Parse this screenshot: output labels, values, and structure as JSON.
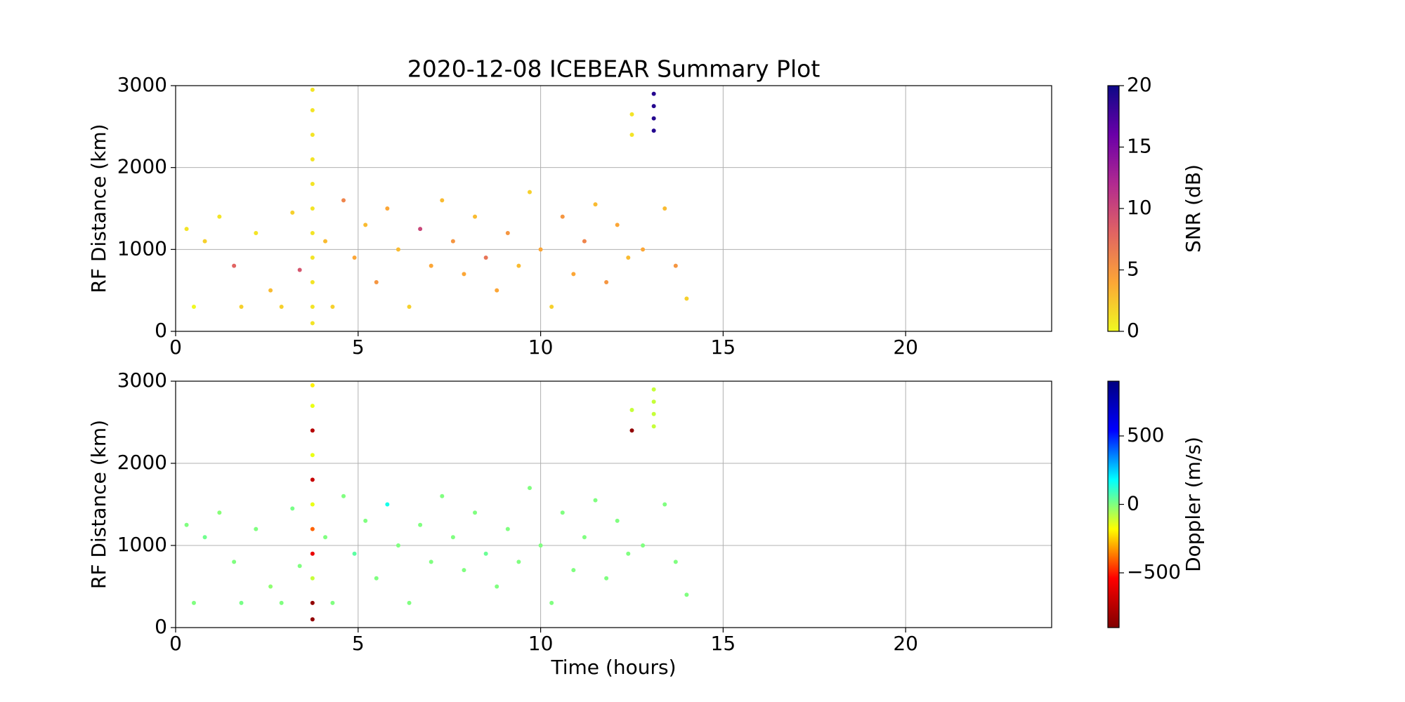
{
  "chart_data": [
    {
      "type": "scatter",
      "title": "2020-12-08 ICEBEAR Summary Plot",
      "ylabel": "RF Distance (km)",
      "x": [
        0.3,
        0.5,
        0.8,
        1.2,
        1.6,
        1.8,
        2.2,
        2.6,
        2.9,
        3.2,
        3.4,
        3.75,
        3.75,
        3.75,
        3.75,
        3.75,
        3.75,
        3.75,
        3.75,
        3.75,
        3.75,
        3.75,
        4.1,
        4.3,
        4.6,
        4.9,
        5.2,
        5.5,
        5.8,
        6.1,
        6.4,
        6.7,
        7.0,
        7.3,
        7.6,
        7.9,
        8.2,
        8.5,
        8.8,
        9.1,
        9.4,
        9.7,
        10.0,
        10.3,
        10.6,
        10.9,
        11.2,
        11.5,
        11.8,
        12.1,
        12.4,
        12.5,
        12.5,
        12.8,
        13.1,
        13.1,
        13.1,
        13.1,
        13.4,
        13.7,
        14.0
      ],
      "values": [
        1250,
        300,
        1100,
        1400,
        800,
        300,
        1200,
        500,
        300,
        1450,
        750,
        100,
        300,
        600,
        900,
        1200,
        1500,
        1800,
        2100,
        2400,
        2700,
        2950,
        1100,
        300,
        1600,
        900,
        1300,
        600,
        1500,
        1000,
        300,
        1250,
        800,
        1600,
        1100,
        700,
        1400,
        900,
        500,
        1200,
        800,
        1700,
        1000,
        300,
        1400,
        700,
        1100,
        1550,
        600,
        1300,
        900,
        2400,
        2650,
        1000,
        2450,
        2600,
        2750,
        2900,
        1500,
        800,
        400
      ],
      "c": [
        1,
        0,
        2,
        1,
        8,
        2,
        1,
        3,
        2,
        2,
        9,
        1,
        1,
        1,
        1,
        1,
        1,
        1,
        1,
        1,
        1,
        1,
        3,
        2,
        6,
        4,
        3,
        5,
        4,
        3,
        2,
        10,
        4,
        3,
        5,
        4,
        3,
        7,
        4,
        5,
        3,
        2,
        4,
        2,
        5,
        4,
        6,
        3,
        5,
        4,
        3,
        1,
        1,
        4,
        19,
        19,
        19,
        19,
        3,
        5,
        2
      ],
      "colorbar": {
        "label": "SNR (dB)",
        "lim": [
          0,
          20
        ],
        "ticks": [
          0,
          5,
          10,
          15,
          20
        ],
        "colormap": [
          "#f0f921",
          "#fca636",
          "#e16462",
          "#b12a90",
          "#6a00a8",
          "#0d0887"
        ]
      },
      "xlim": [
        0,
        24
      ],
      "ylim": [
        0,
        3000
      ],
      "xticks": [
        0,
        5,
        10,
        15,
        20
      ],
      "yticks": [
        0,
        1000,
        2000,
        3000
      ],
      "grid": true
    },
    {
      "type": "scatter",
      "xlabel": "Time (hours)",
      "ylabel": "RF Distance (km)",
      "x": [
        0.3,
        0.5,
        0.8,
        1.2,
        1.6,
        1.8,
        2.2,
        2.6,
        2.9,
        3.2,
        3.4,
        3.75,
        3.75,
        3.75,
        3.75,
        3.75,
        3.75,
        3.75,
        3.75,
        3.75,
        3.75,
        3.75,
        4.1,
        4.3,
        4.6,
        4.9,
        5.2,
        5.5,
        5.8,
        6.1,
        6.4,
        6.7,
        7.0,
        7.3,
        7.6,
        7.9,
        8.2,
        8.5,
        8.8,
        9.1,
        9.4,
        9.7,
        10.0,
        10.3,
        10.6,
        10.9,
        11.2,
        11.5,
        11.8,
        12.1,
        12.4,
        12.5,
        12.5,
        12.8,
        13.1,
        13.1,
        13.1,
        13.1,
        13.4,
        13.7,
        14.0
      ],
      "values": [
        1250,
        300,
        1100,
        1400,
        800,
        300,
        1200,
        500,
        300,
        1450,
        750,
        100,
        300,
        600,
        900,
        1200,
        1500,
        1800,
        2100,
        2400,
        2700,
        2950,
        1100,
        300,
        1600,
        900,
        1300,
        600,
        1500,
        1000,
        300,
        1250,
        800,
        1600,
        1100,
        700,
        1400,
        900,
        500,
        1200,
        800,
        1700,
        1000,
        300,
        1400,
        700,
        1100,
        1550,
        600,
        1300,
        900,
        2400,
        2650,
        1000,
        2450,
        2600,
        2750,
        2900,
        1500,
        800,
        400
      ],
      "c": [
        0,
        0,
        20,
        -10,
        0,
        10,
        0,
        -20,
        0,
        10,
        0,
        -850,
        -850,
        -100,
        -600,
        -400,
        -150,
        -700,
        -150,
        -750,
        -150,
        -200,
        0,
        0,
        0,
        50,
        0,
        0,
        150,
        0,
        0,
        0,
        0,
        0,
        0,
        0,
        0,
        30,
        0,
        0,
        0,
        0,
        0,
        0,
        0,
        0,
        0,
        0,
        0,
        0,
        0,
        -850,
        -100,
        0,
        -100,
        -100,
        -100,
        -100,
        0,
        0,
        0
      ],
      "colorbar": {
        "label": "Doppler (m/s)",
        "lim": [
          -900,
          900
        ],
        "ticks": [
          {
            "value": -500,
            "label": "−500"
          },
          0,
          500
        ],
        "colormap": [
          "#800000",
          "#ff0000",
          "#ffff00",
          "#00ffff",
          "#0000ff",
          "#000080"
        ]
      },
      "xlim": [
        0,
        24
      ],
      "ylim": [
        0,
        3000
      ],
      "xticks": [
        0,
        5,
        10,
        15,
        20
      ],
      "yticks": [
        0,
        1000,
        2000,
        3000
      ],
      "grid": true
    }
  ]
}
